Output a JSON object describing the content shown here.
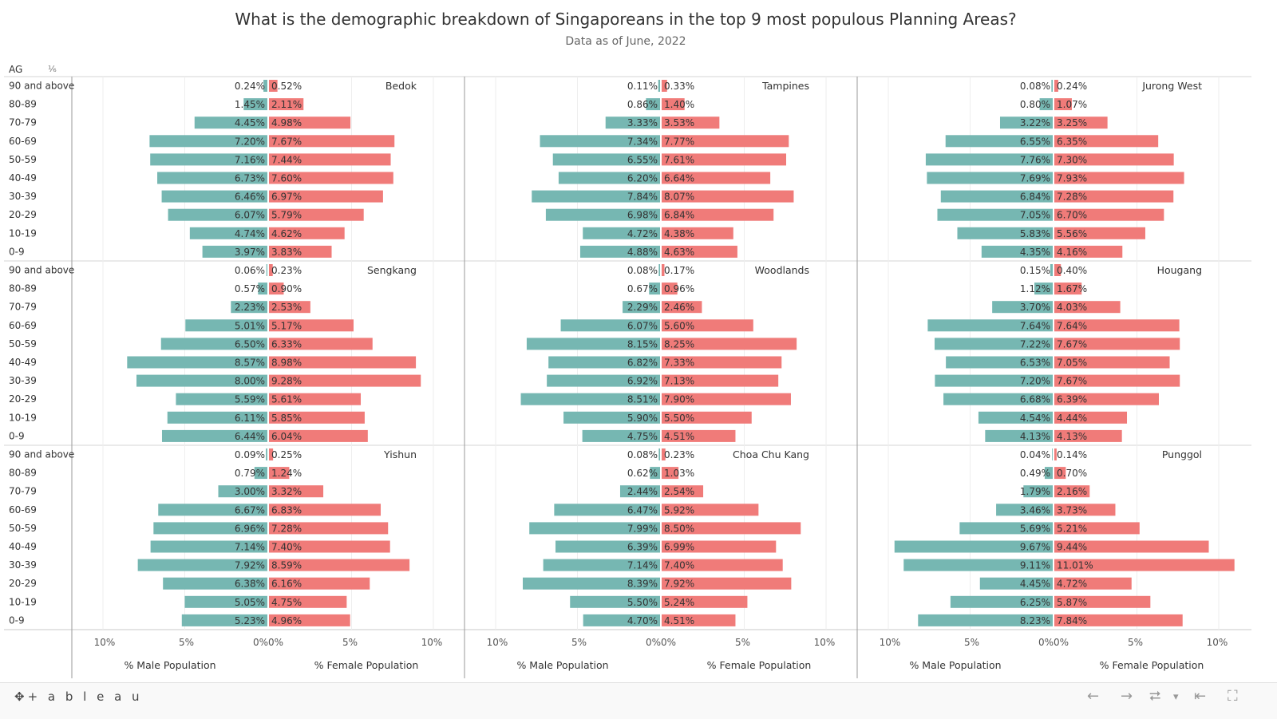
{
  "header": {
    "title": "What is the demographic breakdown of Singaporeans in the top 9 most populous Planning Areas?",
    "subtitle": "Data as of June, 2022",
    "row_header": "AG"
  },
  "footer": {
    "logo": "+ a b l e a u",
    "back_icon": "←",
    "forward_icon": "→",
    "share_icon": "⮂",
    "dropdown_icon": "▾",
    "first_icon": "⇤",
    "fullscreen_icon": "⛶"
  },
  "colors": {
    "male": "#76b7b2",
    "female": "#f07b79"
  },
  "chart_data": {
    "type": "bar",
    "subtype": "population-pyramid",
    "categories": [
      "90 and above",
      "80-89",
      "70-79",
      "60-69",
      "50-59",
      "40-49",
      "30-39",
      "20-29",
      "10-19",
      "0-9"
    ],
    "xlabel_male": "% Male Population",
    "xlabel_female": "% Female Population",
    "xticks_male": [
      "10%",
      "5%",
      "0%"
    ],
    "xticks_female": [
      "0%",
      "5%",
      "10%"
    ],
    "xlim": [
      0,
      10
    ],
    "panels": [
      {
        "name": "Bedok",
        "male": [
          0.24,
          1.45,
          4.45,
          7.2,
          7.16,
          6.73,
          6.46,
          6.07,
          4.74,
          3.97
        ],
        "female": [
          0.52,
          2.11,
          4.98,
          7.67,
          7.44,
          7.6,
          6.97,
          5.79,
          4.62,
          3.83
        ]
      },
      {
        "name": "Tampines",
        "male": [
          0.11,
          0.86,
          3.33,
          7.34,
          6.55,
          6.2,
          7.84,
          6.98,
          4.72,
          4.88
        ],
        "female": [
          0.33,
          1.4,
          3.53,
          7.77,
          7.61,
          6.64,
          8.07,
          6.84,
          4.38,
          4.63
        ]
      },
      {
        "name": "Jurong West",
        "male": [
          0.08,
          0.8,
          3.22,
          6.55,
          7.76,
          7.69,
          6.84,
          7.05,
          5.83,
          4.35
        ],
        "female": [
          0.24,
          1.07,
          3.25,
          6.35,
          7.3,
          7.93,
          7.28,
          6.7,
          5.56,
          4.16
        ]
      },
      {
        "name": "Sengkang",
        "male": [
          0.06,
          0.57,
          2.23,
          5.01,
          6.5,
          8.57,
          8.0,
          5.59,
          6.11,
          6.44
        ],
        "female": [
          0.23,
          0.9,
          2.53,
          5.17,
          6.33,
          8.98,
          9.28,
          5.61,
          5.85,
          6.04
        ]
      },
      {
        "name": "Woodlands",
        "male": [
          0.08,
          0.67,
          2.29,
          6.07,
          8.15,
          6.82,
          6.92,
          8.51,
          5.9,
          4.75
        ],
        "female": [
          0.17,
          0.96,
          2.46,
          5.6,
          8.25,
          7.33,
          7.13,
          7.9,
          5.5,
          4.51
        ]
      },
      {
        "name": "Hougang",
        "male": [
          0.15,
          1.12,
          3.7,
          7.64,
          7.22,
          6.53,
          7.2,
          6.68,
          4.54,
          4.13
        ],
        "female": [
          0.4,
          1.67,
          4.03,
          7.64,
          7.67,
          7.05,
          7.67,
          6.39,
          4.44,
          4.13
        ]
      },
      {
        "name": "Yishun",
        "male": [
          0.09,
          0.79,
          3.0,
          6.67,
          6.96,
          7.14,
          7.92,
          6.38,
          5.05,
          5.23
        ],
        "female": [
          0.25,
          1.24,
          3.32,
          6.83,
          7.28,
          7.4,
          8.59,
          6.16,
          4.75,
          4.96
        ]
      },
      {
        "name": "Choa Chu Kang",
        "male": [
          0.08,
          0.62,
          2.44,
          6.47,
          7.99,
          6.39,
          7.14,
          8.39,
          5.5,
          4.7
        ],
        "female": [
          0.23,
          1.03,
          2.54,
          5.92,
          8.5,
          6.99,
          7.4,
          7.92,
          5.24,
          4.51
        ]
      },
      {
        "name": "Punggol",
        "male": [
          0.04,
          0.49,
          1.79,
          3.46,
          5.69,
          9.67,
          9.11,
          4.45,
          6.25,
          8.23
        ],
        "female": [
          0.14,
          0.7,
          2.16,
          3.73,
          5.21,
          9.44,
          11.01,
          4.72,
          5.87,
          7.84
        ]
      }
    ]
  }
}
